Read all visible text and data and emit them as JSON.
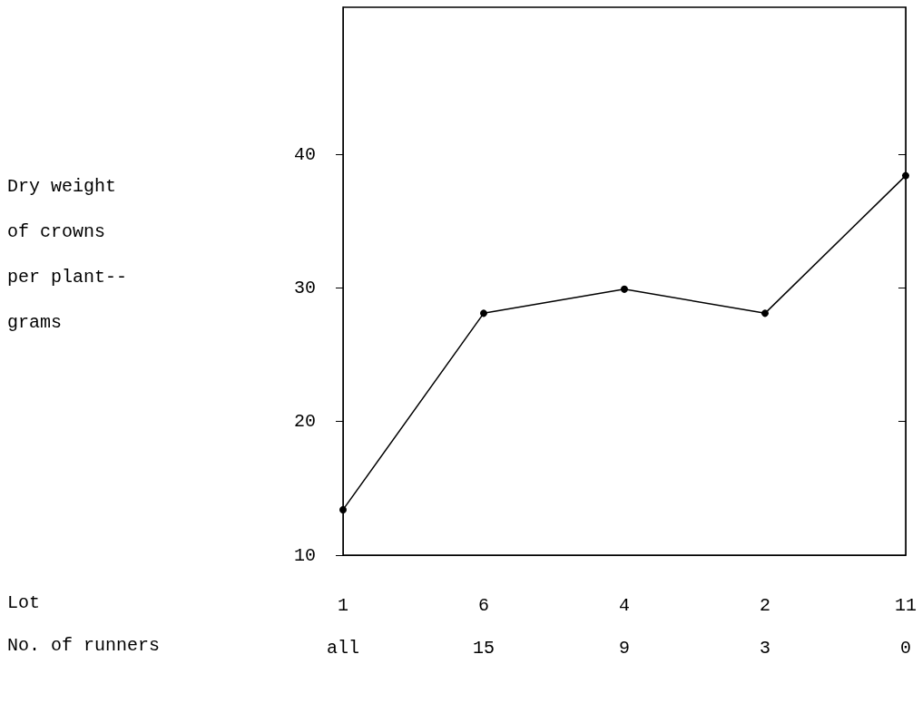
{
  "chart_data": {
    "type": "line",
    "categories": [
      "1\nall",
      "6\n15",
      "4\n9",
      "2\n3",
      "11\n0"
    ],
    "series": [
      {
        "color": "#000000",
        "values": [
          13.4,
          28.1,
          29.9,
          28.1,
          38.4
        ]
      }
    ],
    "xlabel": "Lot\nNo. of runners",
    "ylabel": "Dry weight\nof crowns\nper plant--\ngrams",
    "ylim": [
      10,
      51
    ],
    "yticks": [
      10,
      20,
      30,
      40
    ],
    "grid": false,
    "marker": "circle",
    "line_style": "solid"
  }
}
